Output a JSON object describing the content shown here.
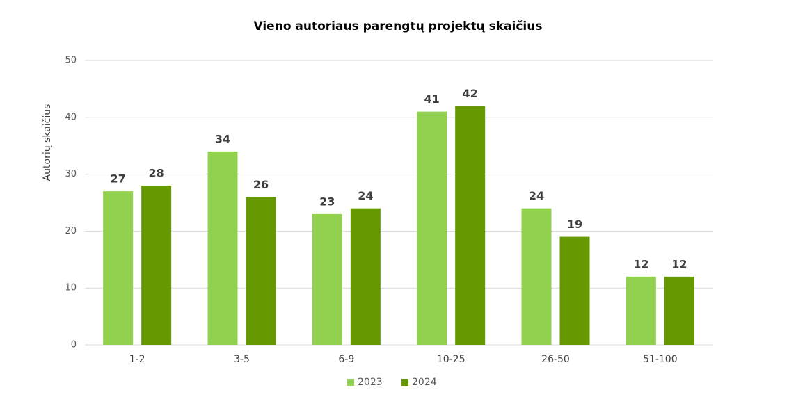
{
  "chart_data": {
    "type": "bar",
    "title": "Vieno autoriaus parengtų projektų skaičius",
    "y_label": "Autorių skaičius",
    "categories": [
      "1-2",
      "3-5",
      "6-9",
      "10-25",
      "26-50",
      "51-100"
    ],
    "series": [
      {
        "name": "2023",
        "color": "#92d050",
        "values": [
          27,
          34,
          23,
          41,
          24,
          12
        ]
      },
      {
        "name": "2024",
        "color": "#669900",
        "values": [
          28,
          26,
          24,
          42,
          19,
          12
        ]
      }
    ],
    "ylim": [
      0,
      50
    ],
    "yticks": [
      0,
      10,
      20,
      30,
      40,
      50
    ],
    "grid": true,
    "legend": "bottom"
  }
}
